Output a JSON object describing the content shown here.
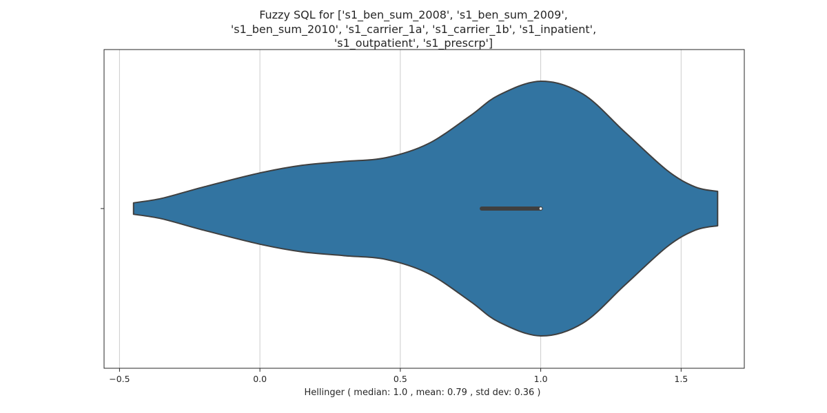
{
  "chart_data": {
    "type": "violin",
    "title_lines": [
      "Fuzzy SQL for ['s1_ben_sum_2008', 's1_ben_sum_2009',",
      "'s1_ben_sum_2010', 's1_carrier_1a', 's1_carrier_1b', 's1_inpatient',",
      "'s1_outpatient', 's1_prescrp']"
    ],
    "xlabel": "Hellinger ( median: 1.0 , mean: 0.79 , std dev: 0.36 )",
    "xlim": [
      -0.555,
      1.725
    ],
    "x_ticks": [
      -0.5,
      0.0,
      0.5,
      1.0,
      1.5
    ],
    "x_tick_labels": [
      "−0.5",
      "0.0",
      "0.5",
      "1.0",
      "1.5"
    ],
    "grid": "x",
    "violin": {
      "color": "#3274a1",
      "edge_color": "#3f3f3f",
      "range": [
        -0.45,
        1.63
      ],
      "density_profile": [
        {
          "x": -0.45,
          "w": 0.045
        },
        {
          "x": -0.35,
          "w": 0.08
        },
        {
          "x": -0.2,
          "w": 0.17
        },
        {
          "x": 0.0,
          "w": 0.28
        },
        {
          "x": 0.15,
          "w": 0.34
        },
        {
          "x": 0.3,
          "w": 0.37
        },
        {
          "x": 0.45,
          "w": 0.4
        },
        {
          "x": 0.6,
          "w": 0.51
        },
        {
          "x": 0.75,
          "w": 0.73
        },
        {
          "x": 0.85,
          "w": 0.89
        },
        {
          "x": 1.0,
          "w": 1.0
        },
        {
          "x": 1.15,
          "w": 0.9
        },
        {
          "x": 1.3,
          "w": 0.6
        },
        {
          "x": 1.45,
          "w": 0.3
        },
        {
          "x": 1.55,
          "w": 0.17
        },
        {
          "x": 1.63,
          "w": 0.135
        }
      ],
      "box_q1": 0.79,
      "box_q3": 1.0,
      "median": 1.0
    }
  }
}
